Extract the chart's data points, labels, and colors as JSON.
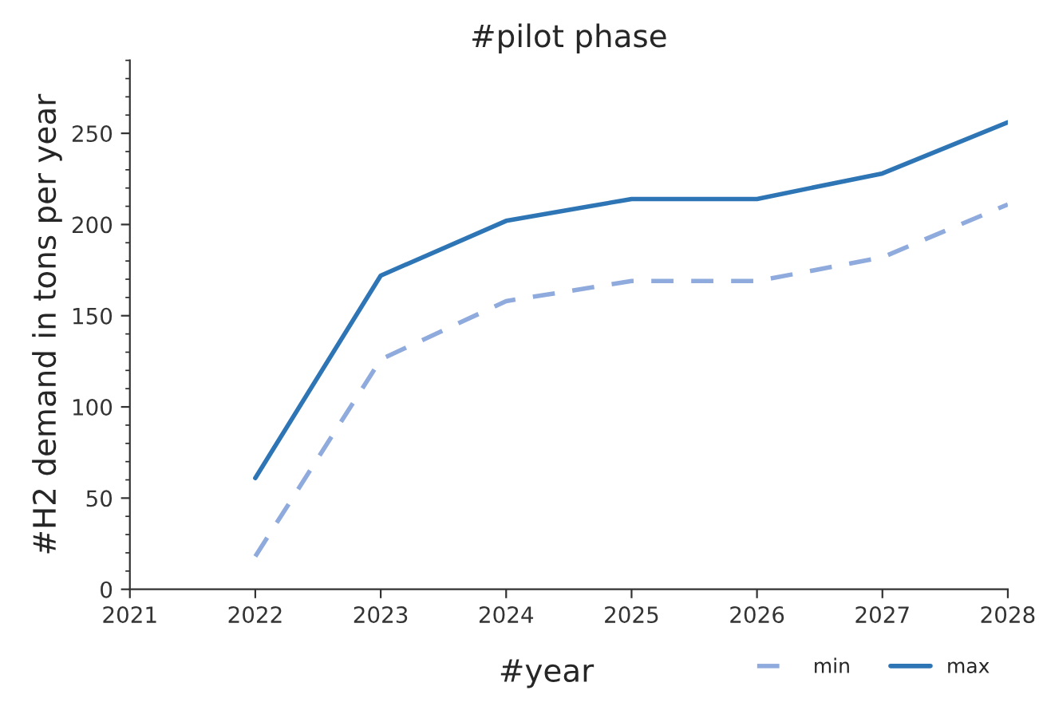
{
  "chart_data": {
    "type": "line",
    "title": "#pilot phase",
    "xlabel": "#year",
    "ylabel": "#H2 demand in tons per year",
    "x": [
      2022,
      2023,
      2024,
      2025,
      2026,
      2027,
      2028
    ],
    "series": [
      {
        "name": "min",
        "color": "#8faadc",
        "line_style": "dashed",
        "values": [
          18,
          126,
          158,
          169,
          169,
          182,
          211
        ]
      },
      {
        "name": "max",
        "color": "#2e75b6",
        "line_style": "solid",
        "values": [
          61,
          172,
          202,
          214,
          214,
          228,
          256
        ]
      }
    ],
    "xlim": [
      2021,
      2028
    ],
    "xticks": [
      2021,
      2022,
      2023,
      2024,
      2025,
      2026,
      2027,
      2028
    ],
    "ylim": [
      0,
      290
    ],
    "yticks": [
      0,
      50,
      100,
      150,
      200,
      250
    ],
    "grid": false,
    "legend": "bottom right",
    "marker": "none"
  }
}
